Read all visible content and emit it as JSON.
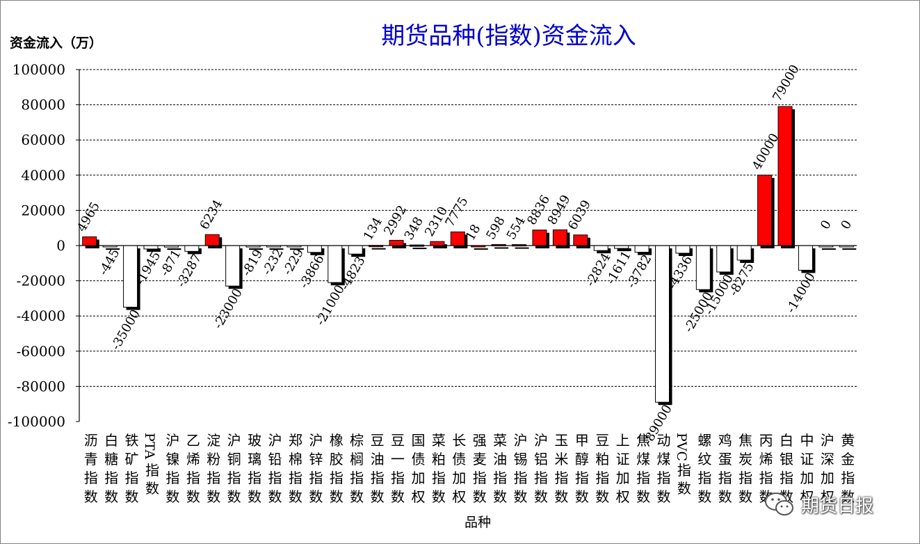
{
  "chart_data": {
    "type": "bar",
    "title": "期货品种(指数)资金流入",
    "ylabel": "资金流入（万）",
    "xlabel": "品种",
    "ylim": [
      -100000,
      100000
    ],
    "yticks": [
      100000,
      80000,
      60000,
      40000,
      20000,
      0,
      -20000,
      -40000,
      -60000,
      -80000,
      -100000
    ],
    "grid": true,
    "colors": {
      "positive": "#ff0000",
      "negative": "#ffffff",
      "shadow": "#000000",
      "axis": "#000000"
    },
    "categories": [
      "沥青指数",
      "白糖指数",
      "铁矿指数",
      "PTA指数",
      "沪镍指数",
      "乙烯指数",
      "淀粉指数",
      "沪铜指数",
      "玻璃指数",
      "沪铅指数",
      "郑棉指数",
      "沪锌指数",
      "橡胶指数",
      "棕榈指数",
      "豆油指数",
      "豆一指数",
      "国债加权",
      "菜粕指数",
      "长债加权",
      "强麦指数",
      "菜油指数",
      "沪锡指数",
      "沪铝指数",
      "玉米指数",
      "甲醇指数",
      "豆粕指数",
      "上证加权",
      "焦煤指数",
      "动煤指数",
      "PVC指数",
      "螺纹指数",
      "鸡蛋指数",
      "焦炭指数",
      "丙烯指数",
      "白银指数",
      "中证加权",
      "沪深加权",
      "黄金指数"
    ],
    "values": [
      4965,
      -445,
      -35000,
      -1945,
      -871,
      -3287,
      6234,
      -23000,
      -819,
      -232,
      -229,
      -3866,
      -21000,
      -4823,
      134,
      2992,
      348,
      2310,
      7775,
      18,
      598,
      554,
      8836,
      8949,
      6039,
      -2824,
      -1611,
      -3782,
      -89000,
      -4336,
      -25000,
      -15000,
      -8275,
      40000,
      79000,
      -14000,
      0,
      0
    ],
    "labels": [
      "4965",
      "-445",
      "-35000",
      "-1945",
      "-871",
      "-3287",
      "6234",
      "-23000",
      "-819",
      "-232",
      "-229",
      "-3866",
      "-21000",
      "-4823",
      "134",
      "2992",
      "348",
      "2310",
      "7775",
      "18",
      "598",
      "554",
      "8836",
      "8949",
      "6039",
      "-2824",
      "-1611",
      "-3782",
      "-89000",
      "-4336",
      "-25000",
      "-15000",
      "-8275",
      "40000",
      "79000",
      "-14000",
      "0",
      "0"
    ]
  },
  "watermark": {
    "text": "期货日报",
    "icon": "wechat-icon"
  }
}
